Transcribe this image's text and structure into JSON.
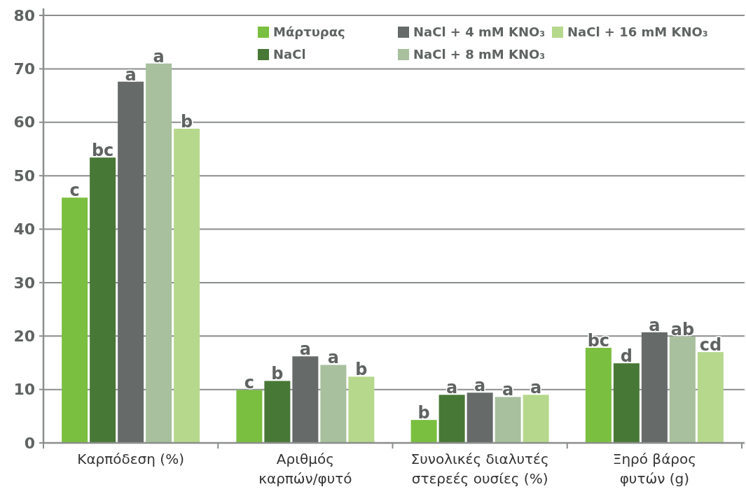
{
  "chart_data": {
    "type": "bar",
    "categories": [
      "Καρπόδεση (%)",
      "Αριθμός\nκαρπών/φυτό",
      "Συνολικές διαλυτές\nστερεές ουσίες  (%)",
      "Ξηρό βάρος\nφυτών (g)"
    ],
    "series": [
      {
        "name": "Μάρτυρας",
        "color": "#7abf3f",
        "values": [
          45.9,
          9.9,
          4.3,
          17.8
        ],
        "value_labels": [
          "c",
          "c",
          "b",
          "bc"
        ]
      },
      {
        "name": "NaCl",
        "color": "#487836",
        "values": [
          53.4,
          11.6,
          9.0,
          14.9
        ],
        "value_labels": [
          "bc",
          "b",
          "a",
          "d"
        ]
      },
      {
        "name": "NaCl + 4 mM KNO₃",
        "color": "#666b6a",
        "values": [
          67.6,
          16.2,
          9.4,
          20.7
        ],
        "value_labels": [
          "a",
          "a",
          "a",
          "a"
        ]
      },
      {
        "name": "NaCl + 8 mM KNO₃",
        "color": "#a8c09d",
        "values": [
          71.0,
          14.6,
          8.6,
          19.9
        ],
        "value_labels": [
          "a",
          "a",
          "a",
          "ab"
        ]
      },
      {
        "name": "NaCl + 16 mM KNO₃",
        "color": "#b6d88c",
        "values": [
          58.8,
          12.4,
          9.0,
          17.0
        ],
        "value_labels": [
          "b",
          "b",
          "a",
          "cd"
        ]
      }
    ],
    "ylim": [
      0,
      80
    ],
    "yticks": [
      0,
      10,
      20,
      30,
      40,
      50,
      60,
      70,
      80
    ],
    "grid": "y",
    "legend": "top right"
  }
}
